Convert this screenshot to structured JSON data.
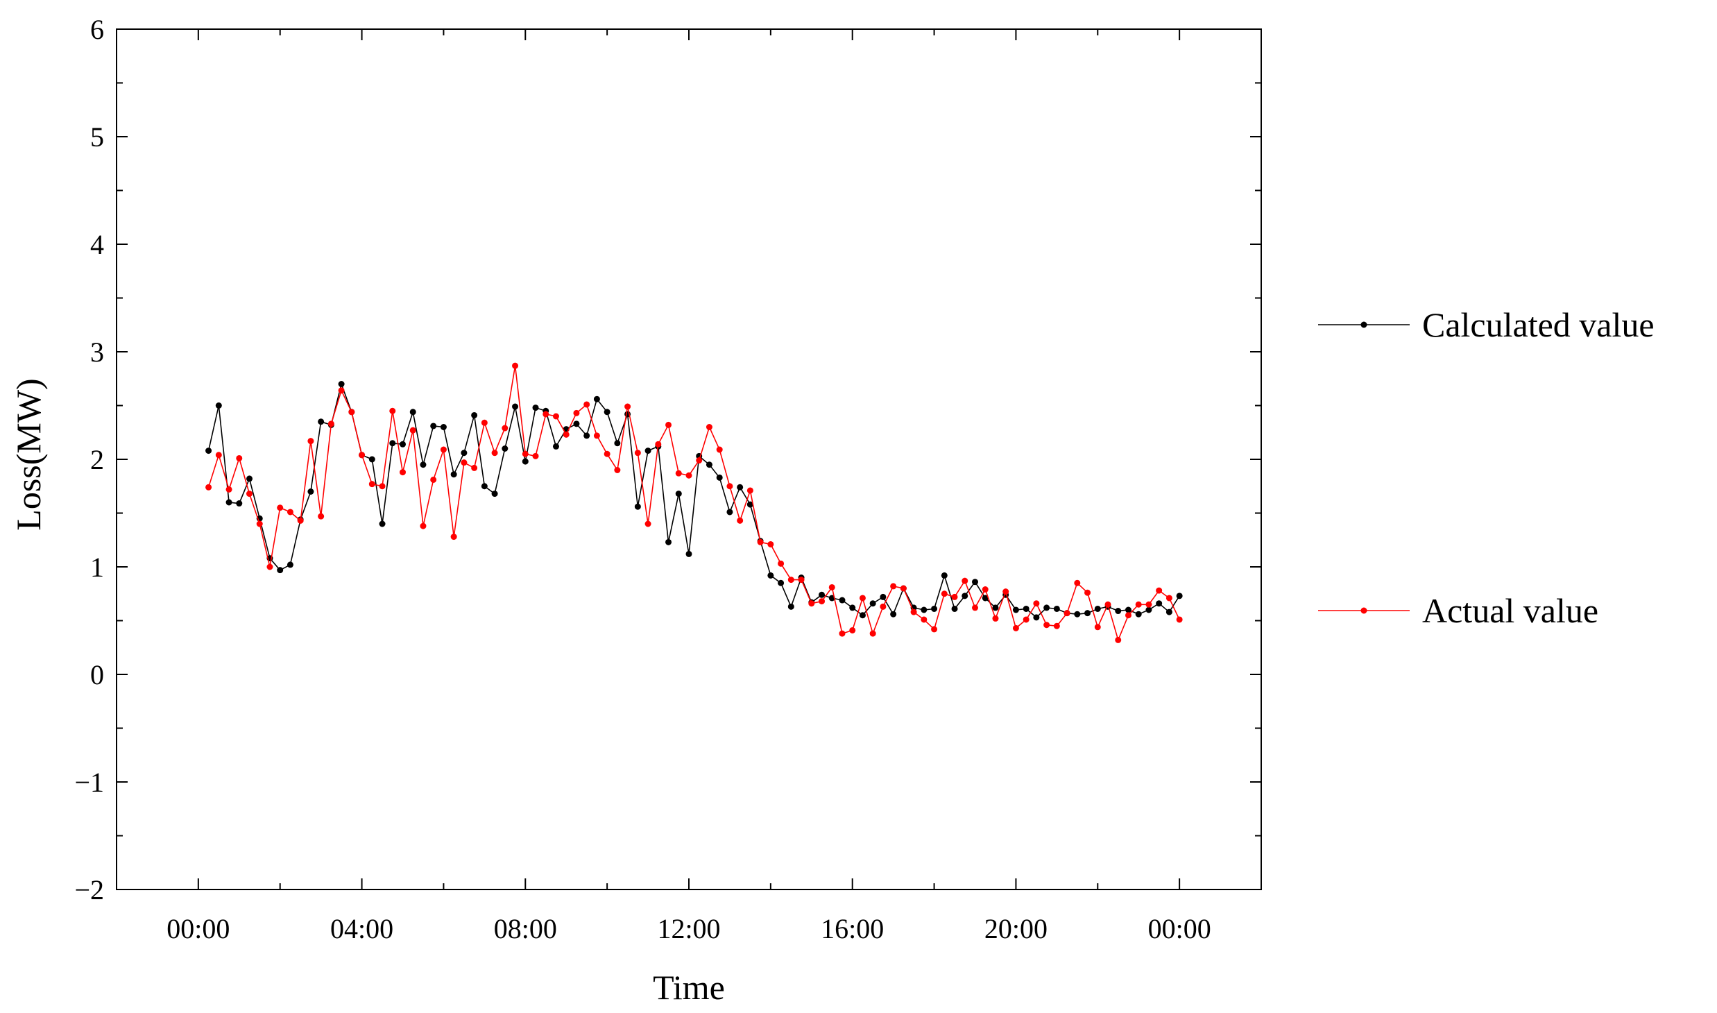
{
  "chart_data": {
    "type": "line",
    "title": "",
    "xlabel": "Time",
    "ylabel": "Loss(MW)",
    "x_tick_labels": [
      "00:00",
      "04:00",
      "08:00",
      "12:00",
      "16:00",
      "20:00",
      "00:00"
    ],
    "x_ticks_hours": [
      0,
      4,
      8,
      12,
      16,
      20,
      24
    ],
    "xlim_hours": [
      -2,
      26
    ],
    "ylim": [
      -2,
      6
    ],
    "y_ticks": [
      -2,
      -1,
      0,
      1,
      2,
      3,
      4,
      5,
      6
    ],
    "y_tick_labels": [
      "−2",
      "−1",
      "0",
      "1",
      "2",
      "3",
      "4",
      "5",
      "6"
    ],
    "grid": false,
    "legend_position": "right",
    "x_hours": [
      0.25,
      0.5,
      0.75,
      1,
      1.25,
      1.5,
      1.75,
      2,
      2.25,
      2.5,
      2.75,
      3,
      3.25,
      3.5,
      3.75,
      4,
      4.25,
      4.5,
      4.75,
      5,
      5.25,
      5.5,
      5.75,
      6,
      6.25,
      6.5,
      6.75,
      7,
      7.25,
      7.5,
      7.75,
      8,
      8.25,
      8.5,
      8.75,
      9,
      9.25,
      9.5,
      9.75,
      10,
      10.25,
      10.5,
      10.75,
      11,
      11.25,
      11.5,
      11.75,
      12,
      12.25,
      12.5,
      12.75,
      13,
      13.25,
      13.5,
      13.75,
      14,
      14.25,
      14.5,
      14.75,
      15,
      15.25,
      15.5,
      15.75,
      16,
      16.25,
      16.5,
      16.75,
      17,
      17.25,
      17.5,
      17.75,
      18,
      18.25,
      18.5,
      18.75,
      19,
      19.25,
      19.5,
      19.75,
      20,
      20.25,
      20.5,
      20.75,
      21,
      21.25,
      21.5,
      21.75,
      22,
      22.25,
      22.5,
      22.75,
      23,
      23.25,
      23.5,
      23.75,
      24
    ],
    "series": [
      {
        "name": "Calculated value",
        "color": "#000000",
        "values": [
          2.08,
          2.5,
          1.6,
          1.59,
          1.82,
          1.45,
          1.08,
          0.97,
          1.02,
          1.44,
          1.7,
          2.35,
          2.32,
          2.7,
          2.44,
          2.04,
          2.0,
          1.4,
          2.15,
          2.14,
          2.44,
          1.95,
          2.31,
          2.3,
          1.86,
          2.06,
          2.41,
          1.75,
          1.68,
          2.1,
          2.49,
          1.98,
          2.48,
          2.45,
          2.12,
          2.28,
          2.33,
          2.22,
          2.56,
          2.44,
          2.15,
          2.42,
          1.56,
          2.08,
          2.12,
          1.23,
          1.68,
          1.12,
          2.03,
          1.95,
          1.83,
          1.51,
          1.74,
          1.58,
          1.24,
          0.92,
          0.85,
          0.63,
          0.9,
          0.67,
          0.74,
          0.71,
          0.69,
          0.62,
          0.55,
          0.66,
          0.72,
          0.56,
          0.8,
          0.62,
          0.6,
          0.61,
          0.92,
          0.61,
          0.73,
          0.86,
          0.71,
          0.62,
          0.74,
          0.6,
          0.61,
          0.53,
          0.62,
          0.61,
          0.57,
          0.56,
          0.57,
          0.61,
          0.63,
          0.59,
          0.6,
          0.56,
          0.6,
          0.66,
          0.58,
          0.73
        ]
      },
      {
        "name": "Actual value",
        "color": "#ff0000",
        "values": [
          1.74,
          2.04,
          1.72,
          2.01,
          1.68,
          1.4,
          1.0,
          1.55,
          1.51,
          1.43,
          2.17,
          1.47,
          2.33,
          2.64,
          2.44,
          2.04,
          1.77,
          1.75,
          2.45,
          1.88,
          2.27,
          1.38,
          1.81,
          2.09,
          1.28,
          1.97,
          1.92,
          2.34,
          2.06,
          2.29,
          2.87,
          2.05,
          2.03,
          2.42,
          2.4,
          2.23,
          2.43,
          2.51,
          2.22,
          2.05,
          1.9,
          2.49,
          2.06,
          1.4,
          2.14,
          2.32,
          1.87,
          1.85,
          1.99,
          2.3,
          2.09,
          1.75,
          1.43,
          1.71,
          1.23,
          1.21,
          1.03,
          0.88,
          0.88,
          0.66,
          0.68,
          0.81,
          0.38,
          0.41,
          0.71,
          0.38,
          0.63,
          0.82,
          0.8,
          0.58,
          0.51,
          0.42,
          0.75,
          0.72,
          0.87,
          0.62,
          0.79,
          0.52,
          0.77,
          0.43,
          0.51,
          0.66,
          0.46,
          0.45,
          0.57,
          0.85,
          0.76,
          0.44,
          0.65,
          0.32,
          0.55,
          0.65,
          0.65,
          0.78,
          0.71,
          0.51
        ]
      }
    ]
  }
}
